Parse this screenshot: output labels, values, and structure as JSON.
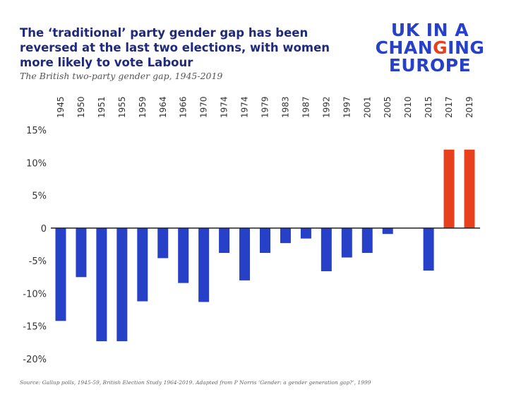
{
  "header": {
    "title": "The ‘traditional’ party gender gap has been reversed at the last two elections, with women more likely to vote Labour",
    "subtitle": "The British two-party gender gap, 1945-2019"
  },
  "logo": {
    "line1": "UK IN A",
    "line2_a": "CHAN",
    "line2_b": "G",
    "line2_c": "ING",
    "line3": "EUROPE"
  },
  "source": "Source: Gallup polls, 1945-59, British Election Study 1964-2019. Adapted from P Norris ‘Gender: a gender generation gap?’, 1999",
  "colors": {
    "negative": "#2740c8",
    "positive": "#e8401c",
    "title": "#1f2a7a"
  },
  "chart_data": {
    "type": "bar",
    "categories": [
      "1945",
      "1950",
      "1951",
      "1955",
      "1959",
      "1964",
      "1966",
      "1970",
      "1974",
      "1974",
      "1979",
      "1983",
      "1987",
      "1992",
      "1997",
      "2001",
      "2005",
      "2010",
      "2015",
      "2017",
      "2019"
    ],
    "values": [
      -14.2,
      -7.5,
      -17.3,
      -17.3,
      -11.2,
      -4.6,
      -8.4,
      -11.3,
      -3.8,
      -8.0,
      -3.8,
      -2.3,
      -1.6,
      -6.6,
      -4.5,
      -3.8,
      -0.9,
      0,
      -6.5,
      12.0,
      12.0
    ],
    "ylim": [
      -20,
      15
    ],
    "yticks": [
      15,
      10,
      5,
      0,
      -5,
      -10,
      -15,
      -20
    ],
    "ytick_labels": [
      "15%",
      "10%",
      "5%",
      "0",
      "-5%",
      "-10%",
      "-15%",
      "-20%"
    ],
    "grid": false
  }
}
